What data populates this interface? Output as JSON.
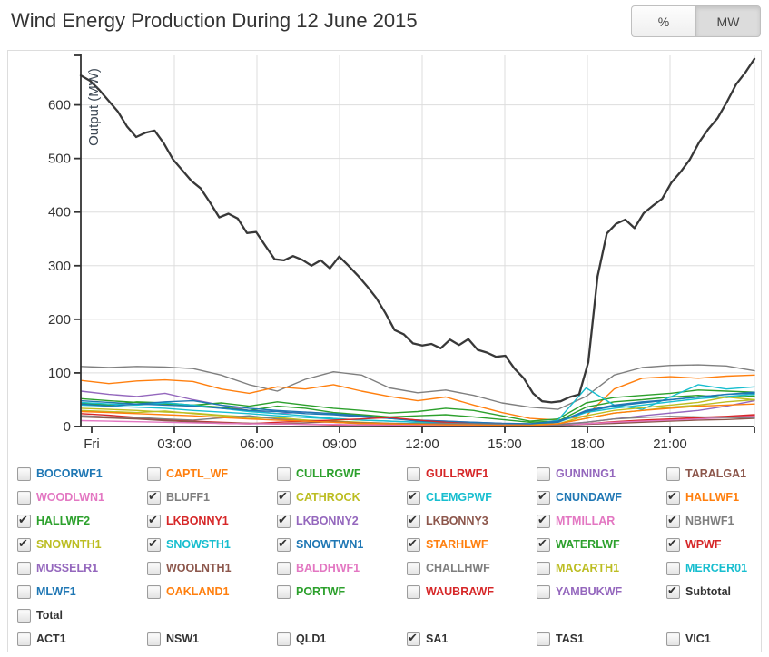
{
  "header": {
    "title": "Wind Energy Production During 12 June 2015",
    "unit_percent": "%",
    "unit_mw": "MW",
    "active_unit": "MW"
  },
  "chart_data": {
    "type": "line",
    "title": "Wind Energy Production During 12 June 2015",
    "xlabel": "",
    "ylabel": "Output (MW)",
    "ylim": [
      0,
      700
    ],
    "grid": true,
    "y_tick_values": [
      0,
      100,
      200,
      300,
      400,
      500,
      600
    ],
    "y_tick_labels": [
      "0",
      "100",
      "200",
      "300",
      "400",
      "500",
      "600"
    ],
    "x_tick_labels": [
      "Fri",
      "03:00",
      "06:00",
      "09:00",
      "12:00",
      "15:00",
      "18:00",
      "21:00"
    ],
    "x_hours": [
      0,
      3,
      6,
      9,
      12,
      15,
      18,
      21,
      24
    ],
    "series": [
      {
        "name": "NBHWF1",
        "color": "#7f7f7f",
        "values": [
          112,
          110,
          112,
          111,
          108,
          96,
          78,
          66,
          88,
          102,
          96,
          72,
          63,
          68,
          58,
          44,
          36,
          32,
          56,
          96,
          110,
          114,
          115,
          113,
          104
        ]
      },
      {
        "name": "HALLWF1",
        "color": "#ff7f0e",
        "values": [
          86,
          80,
          85,
          87,
          84,
          70,
          62,
          74,
          70,
          78,
          66,
          56,
          48,
          55,
          40,
          26,
          15,
          12,
          20,
          70,
          90,
          93,
          90,
          94,
          96
        ]
      },
      {
        "name": "LKBONNY2",
        "color": "#9467bd",
        "values": [
          66,
          60,
          56,
          62,
          50,
          40,
          30,
          24,
          27,
          24,
          20,
          15,
          12,
          10,
          8,
          6,
          5,
          4,
          8,
          14,
          20,
          25,
          30,
          38,
          48
        ]
      },
      {
        "name": "HALLWF2",
        "color": "#2ca02c",
        "values": [
          52,
          48,
          45,
          42,
          40,
          44,
          38,
          46,
          40,
          34,
          30,
          25,
          28,
          34,
          30,
          20,
          10,
          14,
          44,
          54,
          58,
          62,
          68,
          66,
          64
        ]
      },
      {
        "name": "WATERLWF",
        "color": "#2ca02c",
        "values": [
          44,
          40,
          46,
          44,
          40,
          36,
          30,
          38,
          34,
          26,
          22,
          18,
          20,
          22,
          18,
          13,
          8,
          10,
          36,
          46,
          50,
          55,
          58,
          54,
          57
        ]
      },
      {
        "name": "CLEMGPWF",
        "color": "#17becf",
        "values": [
          45,
          42,
          40,
          44,
          40,
          34,
          28,
          24,
          20,
          15,
          12,
          10,
          8,
          6,
          5,
          4,
          3,
          12,
          72,
          40,
          32,
          55,
          78,
          70,
          74
        ]
      },
      {
        "name": "SNOWSTH1",
        "color": "#17becf",
        "values": [
          40,
          38,
          36,
          34,
          30,
          27,
          24,
          20,
          17,
          14,
          12,
          10,
          8,
          6,
          5,
          4,
          4,
          8,
          26,
          34,
          40,
          46,
          52,
          56,
          60
        ]
      },
      {
        "name": "CNUNDAWF",
        "color": "#1f77b4",
        "values": [
          42,
          38,
          42,
          46,
          48,
          40,
          34,
          30,
          27,
          24,
          20,
          15,
          10,
          8,
          6,
          5,
          4,
          8,
          30,
          40,
          46,
          50,
          55,
          60,
          64
        ]
      },
      {
        "name": "SNOWTWN1",
        "color": "#1f77b4",
        "values": [
          48,
          45,
          42,
          40,
          38,
          34,
          30,
          28,
          24,
          22,
          18,
          15,
          12,
          10,
          8,
          6,
          5,
          10,
          28,
          38,
          44,
          50,
          55,
          60,
          62
        ]
      },
      {
        "name": "CATHROCK",
        "color": "#bcbd22",
        "values": [
          30,
          28,
          26,
          29,
          24,
          20,
          15,
          17,
          12,
          8,
          5,
          4,
          6,
          5,
          4,
          3,
          2,
          5,
          20,
          30,
          35,
          40,
          45,
          55,
          50
        ]
      },
      {
        "name": "SNOWNTH1",
        "color": "#bcbd22",
        "values": [
          34,
          32,
          30,
          27,
          25,
          21,
          18,
          15,
          12,
          10,
          8,
          6,
          5,
          4,
          4,
          3,
          3,
          5,
          15,
          25,
          30,
          36,
          40,
          46,
          50
        ]
      },
      {
        "name": "LKBONNY1",
        "color": "#d62728",
        "values": [
          24,
          21,
          17,
          12,
          8,
          6,
          5,
          8,
          10,
          12,
          14,
          17,
          12,
          8,
          5,
          4,
          3,
          2,
          5,
          8,
          10,
          12,
          15,
          18,
          20
        ]
      },
      {
        "name": "WPWF",
        "color": "#d62728",
        "values": [
          20,
          18,
          16,
          13,
          10,
          8,
          6,
          5,
          4,
          3,
          3,
          2,
          2,
          2,
          2,
          1,
          1,
          2,
          5,
          9,
          12,
          14,
          17,
          19,
          22
        ]
      },
      {
        "name": "LKBONNY3",
        "color": "#8c564b",
        "values": [
          18,
          16,
          14,
          11,
          9,
          7,
          6,
          5,
          7,
          9,
          7,
          6,
          5,
          4,
          3,
          3,
          2,
          2,
          4,
          6,
          8,
          10,
          12,
          13,
          15
        ]
      },
      {
        "name": "MTMILLAR",
        "color": "#e377c2",
        "values": [
          11,
          10,
          9,
          8,
          7,
          6,
          5,
          5,
          4,
          4,
          3,
          3,
          3,
          2,
          2,
          2,
          2,
          3,
          5,
          8,
          10,
          12,
          14,
          17,
          19
        ]
      },
      {
        "name": "BLUFF1",
        "color": "#7f7f7f",
        "values": [
          20,
          18,
          17,
          14,
          12,
          16,
          20,
          14,
          10,
          8,
          6,
          5,
          5,
          6,
          5,
          4,
          3,
          3,
          8,
          14,
          17,
          19,
          18,
          17,
          16
        ]
      },
      {
        "name": "STARHLWF",
        "color": "#ff7f0e",
        "values": [
          28,
          26,
          24,
          22,
          20,
          17,
          14,
          12,
          10,
          8,
          6,
          5,
          4,
          3,
          3,
          2,
          2,
          5,
          15,
          25,
          30,
          34,
          38,
          40,
          42
        ]
      },
      {
        "name": "Subtotal",
        "color": "#383838",
        "width": 2.3,
        "values": [
          655,
          645,
          628,
          608,
          588,
          560,
          540,
          548,
          552,
          528,
          498,
          478,
          458,
          444,
          418,
          390,
          397,
          388,
          361,
          363,
          337,
          312,
          310,
          318,
          311,
          300,
          310,
          295,
          317,
          300,
          282,
          262,
          240,
          212,
          180,
          172,
          155,
          151,
          154,
          146,
          162,
          152,
          163,
          143,
          138,
          130,
          132,
          108,
          90,
          62,
          47,
          45,
          47,
          55,
          60,
          120,
          280,
          360,
          378,
          386,
          370,
          398,
          412,
          425,
          455,
          475,
          498,
          530,
          555,
          575,
          605,
          638,
          660,
          686
        ]
      }
    ]
  },
  "legend": {
    "rows": [
      [
        {
          "label": "BOCORWF1",
          "color": "#1f77b4",
          "checked": false
        },
        {
          "label": "CAPTL_WF",
          "color": "#ff7f0e",
          "checked": false
        },
        {
          "label": "CULLRGWF",
          "color": "#2ca02c",
          "checked": false
        },
        {
          "label": "GULLRWF1",
          "color": "#d62728",
          "checked": false
        },
        {
          "label": "GUNNING1",
          "color": "#9467bd",
          "checked": false
        },
        {
          "label": "TARALGA1",
          "color": "#8c564b",
          "checked": false
        }
      ],
      [
        {
          "label": "WOODLWN1",
          "color": "#e377c2",
          "checked": false
        },
        {
          "label": "BLUFF1",
          "color": "#7f7f7f",
          "checked": true
        },
        {
          "label": "CATHROCK",
          "color": "#bcbd22",
          "checked": true
        },
        {
          "label": "CLEMGPWF",
          "color": "#17becf",
          "checked": true
        },
        {
          "label": "CNUNDAWF",
          "color": "#1f77b4",
          "checked": true
        },
        {
          "label": "HALLWF1",
          "color": "#ff7f0e",
          "checked": true
        }
      ],
      [
        {
          "label": "HALLWF2",
          "color": "#2ca02c",
          "checked": true
        },
        {
          "label": "LKBONNY1",
          "color": "#d62728",
          "checked": true
        },
        {
          "label": "LKBONNY2",
          "color": "#9467bd",
          "checked": true
        },
        {
          "label": "LKBONNY3",
          "color": "#8c564b",
          "checked": true
        },
        {
          "label": "MTMILLAR",
          "color": "#e377c2",
          "checked": true
        },
        {
          "label": "NBHWF1",
          "color": "#7f7f7f",
          "checked": true
        }
      ],
      [
        {
          "label": "SNOWNTH1",
          "color": "#bcbd22",
          "checked": true
        },
        {
          "label": "SNOWSTH1",
          "color": "#17becf",
          "checked": true
        },
        {
          "label": "SNOWTWN1",
          "color": "#1f77b4",
          "checked": true
        },
        {
          "label": "STARHLWF",
          "color": "#ff7f0e",
          "checked": true
        },
        {
          "label": "WATERLWF",
          "color": "#2ca02c",
          "checked": true
        },
        {
          "label": "WPWF",
          "color": "#d62728",
          "checked": true
        }
      ],
      [
        {
          "label": "MUSSELR1",
          "color": "#9467bd",
          "checked": false
        },
        {
          "label": "WOOLNTH1",
          "color": "#8c564b",
          "checked": false
        },
        {
          "label": "BALDHWF1",
          "color": "#e377c2",
          "checked": false
        },
        {
          "label": "CHALLHWF",
          "color": "#7f7f7f",
          "checked": false
        },
        {
          "label": "MACARTH1",
          "color": "#bcbd22",
          "checked": false
        },
        {
          "label": "MERCER01",
          "color": "#17becf",
          "checked": false
        }
      ],
      [
        {
          "label": "MLWF1",
          "color": "#1f77b4",
          "checked": false
        },
        {
          "label": "OAKLAND1",
          "color": "#ff7f0e",
          "checked": false
        },
        {
          "label": "PORTWF",
          "color": "#2ca02c",
          "checked": false
        },
        {
          "label": "WAUBRAWF",
          "color": "#d62728",
          "checked": false
        },
        {
          "label": "YAMBUKWF",
          "color": "#9467bd",
          "checked": false
        },
        {
          "label": "Subtotal",
          "color": "#333333",
          "checked": true
        }
      ],
      [
        {
          "label": "Total",
          "color": "#333333",
          "checked": false
        }
      ],
      [
        {
          "label": "ACT1",
          "color": "#333333",
          "checked": false
        },
        {
          "label": "NSW1",
          "color": "#333333",
          "checked": false
        },
        {
          "label": "QLD1",
          "color": "#333333",
          "checked": false
        },
        {
          "label": "SA1",
          "color": "#333333",
          "checked": true
        },
        {
          "label": "TAS1",
          "color": "#333333",
          "checked": false
        },
        {
          "label": "VIC1",
          "color": "#333333",
          "checked": false
        }
      ]
    ]
  }
}
